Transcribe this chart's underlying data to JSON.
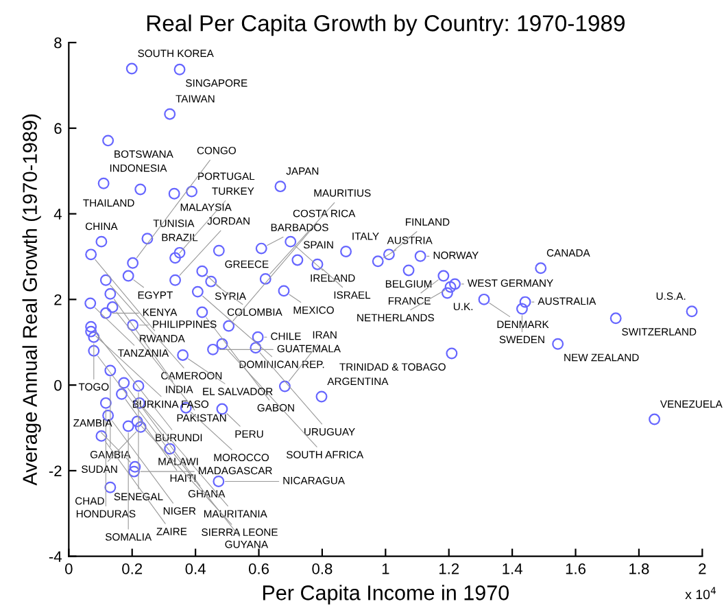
{
  "chart_data": {
    "type": "scatter",
    "title": "Real Per Capita Growth by Country: 1970-1989",
    "xlabel": "Per Capita Income in 1970",
    "ylabel": "Average Annual Real Growth (1970-1989)",
    "xlim": [
      0,
      2
    ],
    "xticks": [
      0,
      0.2,
      0.4,
      0.6,
      0.8,
      1,
      1.2,
      1.4,
      1.6,
      1.8,
      2
    ],
    "ylim": [
      -4,
      8
    ],
    "yticks": [
      -4,
      -2,
      0,
      2,
      4,
      6,
      8
    ],
    "grid": false,
    "legend": false,
    "marker": "circle",
    "series": [
      {
        "color": "#6666ff",
        "x": [
          0.199,
          0.35,
          0.319,
          0.124,
          0.11,
          0.226,
          0.333,
          0.388,
          0.668,
          0.103,
          0.248,
          0.07,
          0.202,
          0.35,
          0.336,
          0.474,
          0.421,
          0.188,
          0.117,
          0.336,
          0.449,
          0.407,
          0.131,
          0.138,
          0.068,
          0.117,
          0.421,
          0.07,
          0.202,
          0.07,
          0.505,
          0.079,
          0.597,
          0.59,
          0.484,
          0.079,
          0.455,
          0.131,
          0.174,
          0.22,
          0.36,
          0.167,
          0.223,
          0.117,
          0.37,
          0.484,
          0.124,
          0.216,
          0.188,
          0.227,
          0.103,
          0.319,
          0.209,
          0.206,
          0.131,
          0.473,
          0.682,
          0.798,
          0.608,
          0.7,
          0.722,
          0.785,
          0.875,
          0.621,
          0.679,
          0.976,
          1.011,
          1.11,
          1.073,
          1.183,
          1.219,
          1.205,
          1.195,
          1.49,
          1.311,
          1.441,
          1.431,
          1.727,
          1.967,
          1.544,
          1.209,
          1.849
        ],
        "values": [
          7.39,
          7.37,
          6.33,
          5.71,
          4.71,
          4.57,
          4.47,
          4.52,
          4.64,
          3.35,
          3.42,
          3.05,
          2.85,
          3.09,
          2.97,
          3.14,
          2.66,
          2.55,
          2.45,
          2.45,
          2.42,
          2.18,
          2.13,
          1.82,
          1.91,
          1.68,
          1.7,
          1.36,
          1.4,
          1.25,
          1.38,
          1.12,
          1.12,
          0.87,
          0.96,
          0.8,
          0.83,
          0.34,
          0.05,
          -0.02,
          0.7,
          -0.21,
          -0.42,
          -0.42,
          -0.53,
          -0.56,
          -0.71,
          -0.85,
          -0.96,
          -0.98,
          -1.19,
          -1.49,
          -1.91,
          -2.02,
          -2.39,
          -2.25,
          -0.03,
          -0.27,
          3.19,
          3.35,
          2.92,
          2.82,
          3.12,
          2.48,
          2.2,
          2.89,
          3.05,
          3.01,
          2.68,
          2.55,
          2.36,
          2.29,
          2.15,
          2.73,
          2.0,
          1.94,
          1.78,
          1.56,
          1.72,
          0.96,
          0.74,
          -0.8
        ]
      }
    ],
    "annotations": [
      "x 10$^{4}$",
      {
        "text": "SOUTH KOREA",
        "x": 0.199,
        "y": 7.39
      },
      {
        "text": "SINGAPORE",
        "x": 0.35,
        "y": 7.37
      },
      {
        "text": "TAIWAN",
        "x": 0.319,
        "y": 6.33
      },
      {
        "text": "BOTSWANA",
        "x": 0.124,
        "y": 5.71
      },
      {
        "text": "INDONESIA",
        "x": 0.11,
        "y": 4.71
      },
      {
        "text": "THAILAND",
        "x": 0.226,
        "y": 4.57
      },
      {
        "text": "MALAYSIA",
        "x": 0.333,
        "y": 4.47
      },
      {
        "text": "PORTUGAL",
        "x": 0.388,
        "y": 4.52
      },
      {
        "text": "JAPAN",
        "x": 0.668,
        "y": 4.64
      },
      {
        "text": "CHINA",
        "x": 0.103,
        "y": 3.35
      },
      {
        "text": "TUNISIA",
        "x": 0.248,
        "y": 3.42
      },
      {
        "text": "RWANDA",
        "x": 0.07,
        "y": 3.05
      },
      {
        "text": "CONGO",
        "x": 0.202,
        "y": 2.85
      },
      {
        "text": "BRAZIL",
        "x": 0.35,
        "y": 3.09
      },
      {
        "text": "TURKEY",
        "x": 0.336,
        "y": 2.97
      },
      {
        "text": "GREECE",
        "x": 0.474,
        "y": 3.14
      },
      {
        "text": "SYRIA",
        "x": 0.421,
        "y": 2.66
      },
      {
        "text": "EGYPT",
        "x": 0.188,
        "y": 2.55
      },
      {
        "text": "CAMEROON",
        "x": 0.117,
        "y": 2.45
      },
      {
        "text": "JORDAN",
        "x": 0.336,
        "y": 2.45
      },
      {
        "text": "COLOMBIA",
        "x": 0.449,
        "y": 2.42
      },
      {
        "text": "DOMINICAN REP.",
        "x": 0.407,
        "y": 2.18
      },
      {
        "text": "INDIA",
        "x": 0.131,
        "y": 2.13
      },
      {
        "text": "PAKISTAN",
        "x": 0.138,
        "y": 1.82
      },
      {
        "text": "TANZANIA",
        "x": 0.068,
        "y": 1.91
      },
      {
        "text": "KENYA",
        "x": 0.117,
        "y": 1.68
      },
      {
        "text": "GABON",
        "x": 0.421,
        "y": 1.7
      },
      {
        "text": "BURUNDI",
        "x": 0.07,
        "y": 1.36
      },
      {
        "text": "PHILIPPINES",
        "x": 0.202,
        "y": 1.4
      },
      {
        "text": "BURKINA FASO",
        "x": 0.07,
        "y": 1.25
      },
      {
        "text": "COSTA RICA",
        "x": 0.505,
        "y": 1.38
      },
      {
        "text": "TOGO",
        "x": 0.079,
        "y": 1.12
      },
      {
        "text": "CHILE",
        "x": 0.597,
        "y": 1.12
      },
      {
        "text": "URUGUAY",
        "x": 0.59,
        "y": 0.87
      },
      {
        "text": "SOUTH AFRICA",
        "x": 0.484,
        "y": 0.96
      },
      {
        "text": "MALAWI",
        "x": 0.079,
        "y": 0.8
      },
      {
        "text": "GUATEMALA",
        "x": 0.455,
        "y": 0.83
      },
      {
        "text": "GAMBIA",
        "x": 0.131,
        "y": 0.34
      },
      {
        "text": "GHANA",
        "x": 0.174,
        "y": 0.05
      },
      {
        "text": "SENEGAL",
        "x": 0.22,
        "y": -0.02
      },
      {
        "text": "EL SALVADOR",
        "x": 0.36,
        "y": 0.7
      },
      {
        "text": "HAITI",
        "x": 0.167,
        "y": -0.21
      },
      {
        "text": "MAURITANIA",
        "x": 0.223,
        "y": -0.42
      },
      {
        "text": "HONDURAS",
        "x": 0.117,
        "y": -0.42
      },
      {
        "text": "MOROCCO",
        "x": 0.37,
        "y": -0.53
      },
      {
        "text": "PERU",
        "x": 0.484,
        "y": -0.56
      },
      {
        "text": "NIGER",
        "x": 0.124,
        "y": -0.71
      },
      {
        "text": "SIERRA LEONE",
        "x": 0.216,
        "y": -0.85
      },
      {
        "text": "SOMALIA",
        "x": 0.188,
        "y": -0.96
      },
      {
        "text": "SUDAN",
        "x": 0.227,
        "y": -0.98
      },
      {
        "text": "ZAIRE",
        "x": 0.103,
        "y": -1.19
      },
      {
        "text": "GUYANA",
        "x": 0.319,
        "y": -1.49
      },
      {
        "text": "ZAMBIA",
        "x": 0.209,
        "y": -1.91
      },
      {
        "text": "MADAGASCAR",
        "x": 0.206,
        "y": -2.02
      },
      {
        "text": "CHAD",
        "x": 0.131,
        "y": -2.39
      },
      {
        "text": "NICARAGUA",
        "x": 0.473,
        "y": -2.25
      },
      {
        "text": "IRAN",
        "x": 0.682,
        "y": -0.03
      },
      {
        "text": "ARGENTINA",
        "x": 0.798,
        "y": -0.27
      },
      {
        "text": "BARBADOS",
        "x": 0.608,
        "y": 3.19
      },
      {
        "text": "IRELAND",
        "x": 0.7,
        "y": 3.35
      },
      {
        "text": "SPAIN",
        "x": 0.722,
        "y": 2.92
      },
      {
        "text": "ISRAEL",
        "x": 0.785,
        "y": 2.82
      },
      {
        "text": "ITALY",
        "x": 0.875,
        "y": 3.12
      },
      {
        "text": "MAURITIUS",
        "x": 0.621,
        "y": 2.48
      },
      {
        "text": "MEXICO",
        "x": 0.679,
        "y": 2.2
      },
      {
        "text": "AUSTRIA",
        "x": 0.976,
        "y": 2.89
      },
      {
        "text": "FINLAND",
        "x": 1.011,
        "y": 3.05
      },
      {
        "text": "NORWAY",
        "x": 1.11,
        "y": 3.01
      },
      {
        "text": "BELGIUM",
        "x": 1.073,
        "y": 2.68
      },
      {
        "text": "FRANCE",
        "x": 1.183,
        "y": 2.55
      },
      {
        "text": "WEST GERMANY",
        "x": 1.219,
        "y": 2.36
      },
      {
        "text": "NETHERLANDS",
        "x": 1.205,
        "y": 2.29
      },
      {
        "text": "U.K.",
        "x": 1.195,
        "y": 2.15
      },
      {
        "text": "CANADA",
        "x": 1.49,
        "y": 2.73
      },
      {
        "text": "DENMARK",
        "x": 1.311,
        "y": 2.0
      },
      {
        "text": "AUSTRALIA",
        "x": 1.441,
        "y": 1.94
      },
      {
        "text": "SWEDEN",
        "x": 1.431,
        "y": 1.78
      },
      {
        "text": "SWITZERLAND",
        "x": 1.727,
        "y": 1.56
      },
      {
        "text": "U.S.A.",
        "x": 1.967,
        "y": 1.72
      },
      {
        "text": "NEW ZEALAND",
        "x": 1.544,
        "y": 0.96
      },
      {
        "text": "TRINIDAD & TOBAGO",
        "x": 1.209,
        "y": 0.74
      },
      {
        "text": "VENEZUELA",
        "x": 1.849,
        "y": -0.8
      }
    ]
  }
}
